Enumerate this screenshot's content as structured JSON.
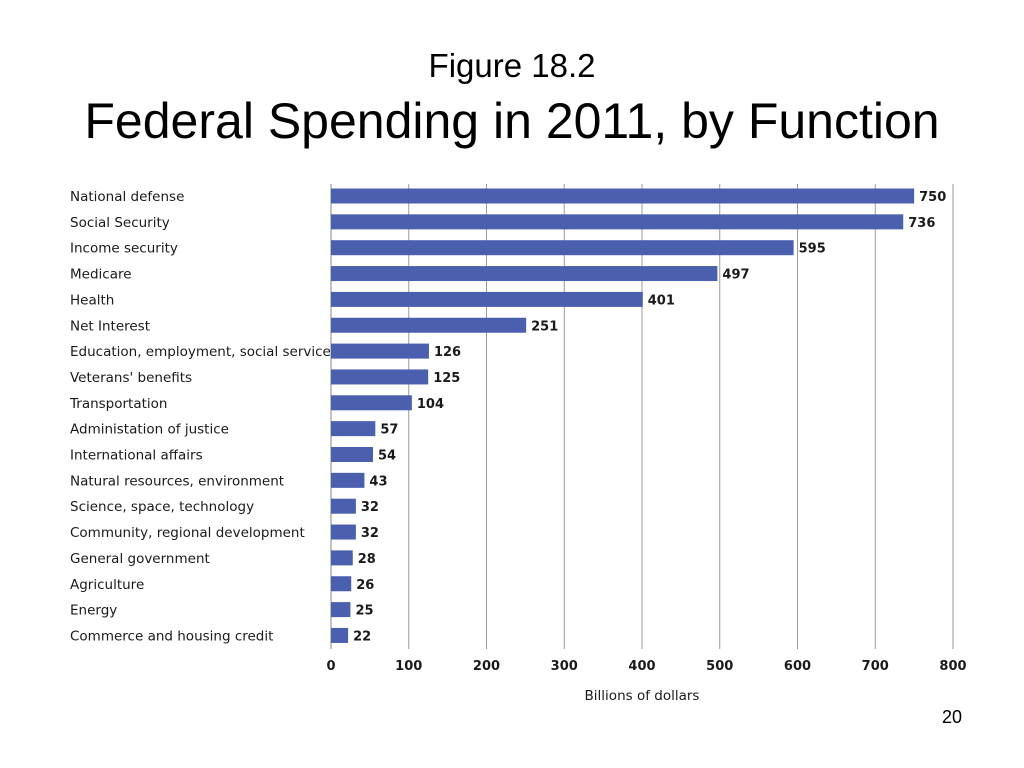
{
  "slide": {
    "figure_label": "Figure 18.2",
    "title": "Federal Spending in 2011, by Function",
    "page_number": "20"
  },
  "chart_data": {
    "type": "bar",
    "orientation": "horizontal",
    "categories": [
      "National defense",
      "Social Security",
      "Income security",
      "Medicare",
      "Health",
      "Net Interest",
      "Education, employment, social services",
      "Veterans' benefits",
      "Transportation",
      "Administation of justice",
      "International affairs",
      "Natural resources, environment",
      "Science, space, technology",
      "Community, regional development",
      "General government",
      "Agriculture",
      "Energy",
      "Commerce and housing credit"
    ],
    "values": [
      750,
      736,
      595,
      497,
      401,
      251,
      126,
      125,
      104,
      57,
      54,
      43,
      32,
      32,
      28,
      26,
      25,
      22
    ],
    "xlabel": "Billions of dollars",
    "xlim": [
      0,
      800
    ],
    "xticks": [
      0,
      100,
      200,
      300,
      400,
      500,
      600,
      700,
      800
    ],
    "grid": "vertical",
    "legend": "none",
    "bar_color": "#4a5fae",
    "grid_color": "#9a9a9a"
  }
}
